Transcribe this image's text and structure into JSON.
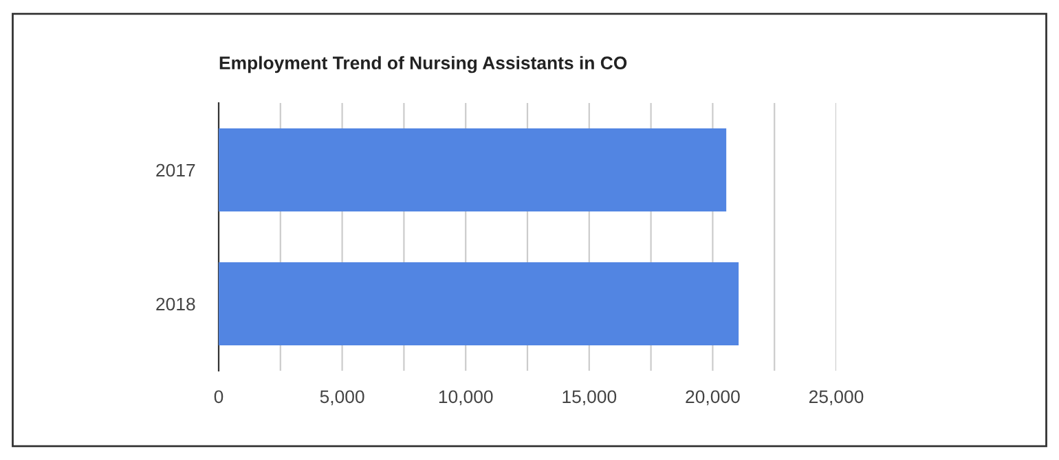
{
  "chart_data": {
    "type": "bar",
    "orientation": "horizontal",
    "title": "Employment Trend of Nursing Assistants in CO",
    "categories": [
      "2017",
      "2018"
    ],
    "values": [
      20550,
      21050
    ],
    "color": "#5285e2",
    "xlim": [
      0,
      25000
    ],
    "xticks": [
      0,
      {
        "value": 2500,
        "label": null
      },
      {
        "value": 5000,
        "label": "5,000"
      },
      {
        "value": 7500,
        "label": null
      },
      {
        "value": 10000,
        "label": "10,000"
      },
      {
        "value": 12500,
        "label": null
      },
      {
        "value": 15000,
        "label": "15,000"
      },
      {
        "value": 17500,
        "label": null
      },
      {
        "value": 20000,
        "label": "20,000"
      },
      {
        "value": 22500,
        "label": null
      },
      {
        "value": 25000,
        "label": "25,000"
      }
    ],
    "grid": "x"
  }
}
